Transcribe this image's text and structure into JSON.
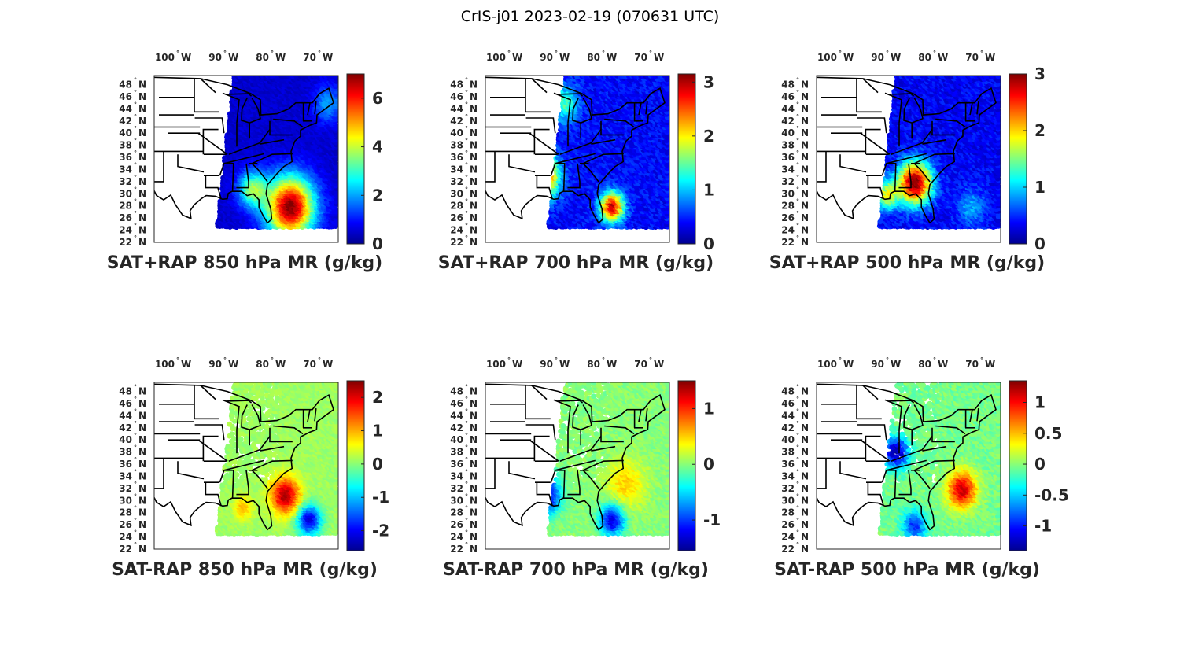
{
  "figure_title": "CrIS-j01 2023-02-19 (070631 UTC)",
  "lon_ticks": [
    "100",
    "90",
    "80",
    "70"
  ],
  "lon_suffix": "W",
  "lat_ticks": [
    "48",
    "46",
    "44",
    "42",
    "40",
    "38",
    "36",
    "34",
    "32",
    "30",
    "28",
    "26",
    "24",
    "22"
  ],
  "lat_suffix": "N",
  "degree_symbol": "°",
  "colormap": [
    "#00008f",
    "#0000ff",
    "#0080ff",
    "#00ffff",
    "#80ff80",
    "#ffff00",
    "#ff8000",
    "#ff0000",
    "#800000"
  ],
  "panels": [
    {
      "label": "SAT+RAP 850 hPa MR (g/kg)",
      "cmin": 0,
      "cmax": 7,
      "cticks": [
        "0",
        "2",
        "4",
        "6"
      ],
      "field": {
        "base": 0.5,
        "hotspots": [
          [
            -76,
            28,
            6.5,
            5
          ],
          [
            -84,
            31,
            3,
            3
          ],
          [
            -68,
            45,
            1.5,
            3
          ]
        ]
      }
    },
    {
      "label": "SAT+RAP 700 hPa MR (g/kg)",
      "cmin": 0,
      "cmax": 3.15,
      "cticks": [
        "0",
        "1",
        "2",
        "3"
      ],
      "field": {
        "base": 0.4,
        "hotspots": [
          [
            -93,
            33,
            2.8,
            3.5
          ],
          [
            -78,
            28,
            2.5,
            2.5
          ],
          [
            -88,
            45,
            1.0,
            3
          ]
        ]
      }
    },
    {
      "label": "SAT+RAP 500 hPa MR (g/kg)",
      "cmin": 0,
      "cmax": 3.0,
      "cticks": [
        "0",
        "1",
        "2",
        "3"
      ],
      "field": {
        "base": 0.35,
        "hotspots": [
          [
            -84,
            32,
            2.7,
            3.5
          ],
          [
            -90,
            30,
            1.4,
            2.5
          ],
          [
            -72,
            28,
            0.5,
            3
          ]
        ]
      }
    },
    {
      "label": "SAT-RAP 850 hPa MR (g/kg)",
      "cmin": -2.6,
      "cmax": 2.5,
      "cticks": [
        "-2",
        "-1",
        "0",
        "1",
        "2"
      ],
      "field": {
        "base": 0.1,
        "hotspots": [
          [
            -77,
            31,
            2.2,
            3
          ],
          [
            -72,
            27,
            -2.3,
            2.5
          ],
          [
            -86,
            29,
            0.8,
            2
          ]
        ]
      }
    },
    {
      "label": "SAT-RAP 700 hPa MR (g/kg)",
      "cmin": -1.55,
      "cmax": 1.5,
      "cticks": [
        "-1",
        "0",
        "1"
      ],
      "field": {
        "base": 0.0,
        "hotspots": [
          [
            -92,
            31,
            -1.4,
            3
          ],
          [
            -78,
            27,
            -1.3,
            2.5
          ],
          [
            -75,
            33,
            0.5,
            4
          ]
        ]
      }
    },
    {
      "label": "SAT-RAP 500 hPa MR (g/kg)",
      "cmin": -1.4,
      "cmax": 1.35,
      "cticks": [
        "-1",
        "-0.5",
        "0",
        "0.5",
        "1"
      ],
      "field": {
        "base": -0.05,
        "hotspots": [
          [
            -74,
            32,
            1.2,
            3
          ],
          [
            -88,
            38,
            -1.3,
            2.5
          ],
          [
            -84,
            26,
            -0.9,
            2.5
          ]
        ]
      }
    }
  ]
}
